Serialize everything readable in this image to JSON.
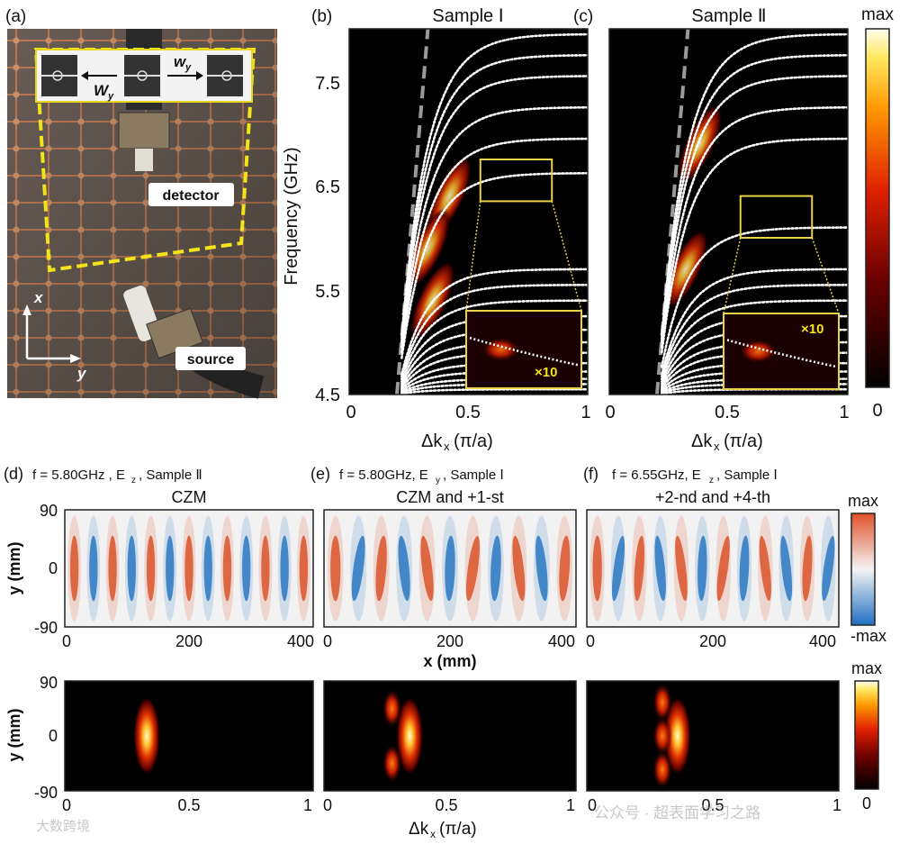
{
  "figure": {
    "panels": {
      "a": {
        "tag": "(a)",
        "labels": {
          "detector": "detector",
          "source": "source",
          "axis_x": "x",
          "axis_y": "y"
        },
        "inset": {
          "w_left": "W",
          "w_left_sub": "y",
          "w_right": "w",
          "w_right_sub": "y"
        }
      },
      "b": {
        "tag": "(b)",
        "title": "Sample Ⅰ",
        "inset_label": "×10"
      },
      "c": {
        "tag": "(c)",
        "title": "Sample Ⅱ",
        "inset_label": "×10"
      },
      "d": {
        "tag": "(d)",
        "caption": "f = 5.80GHz , E",
        "caption_sub": "z",
        "caption_tail": ", Sample Ⅱ",
        "title": "CZM"
      },
      "e": {
        "tag": "(e)",
        "caption": "f = 5.80GHz, E",
        "caption_sub": "y",
        "caption_tail": ", Sample Ⅰ",
        "title": "CZM and +1-st"
      },
      "f": {
        "tag": "(f)",
        "caption": "f = 6.55GHz, E",
        "caption_sub": "z",
        "caption_tail": ", Sample Ⅰ",
        "title": "+2-nd and +4-th"
      }
    },
    "colorbars": {
      "top": {
        "max": "max",
        "min": "0"
      },
      "field": {
        "max": "max",
        "min": "-max"
      },
      "bottom": {
        "max": "max",
        "min": "0"
      }
    },
    "axes": {
      "freq_label": "Frequency (GHz)",
      "freq_ticks": [
        "4.5",
        "5.5",
        "6.5",
        "7.5"
      ],
      "dk_label": "Δk",
      "dk_label_sub": "x",
      "dk_unit": "(π/a)",
      "dk_ticks": [
        "0",
        "0.5",
        "1"
      ],
      "y_label": "y (mm)",
      "y_ticks": [
        "90",
        "0",
        "-90"
      ],
      "x_label": "x (mm)",
      "x_ticks": [
        "0",
        "200",
        "400"
      ]
    },
    "watermarks": {
      "left": "大数跨境",
      "right": "公众号 · 超表面学习之路"
    }
  },
  "chart_data": [
    {
      "type": "heatmap",
      "title": "Sample Ⅰ",
      "xlabel": "Δkx (π/a)",
      "ylabel": "Frequency (GHz)",
      "xlim": [
        0,
        1
      ],
      "ylim": [
        4.5,
        8.0
      ],
      "light_line": [
        [
          0.2,
          4.5
        ],
        [
          0.33,
          8.0
        ]
      ],
      "bands": [
        4.55,
        4.6,
        4.65,
        4.72,
        4.8,
        4.9,
        5.0,
        5.12,
        5.25,
        5.4,
        5.55,
        5.7,
        6.62,
        6.95,
        7.25,
        7.55,
        7.75,
        7.95
      ],
      "bright_regions": [
        [
          0.35,
          5.4
        ],
        [
          0.42,
          6.4
        ],
        [
          0.33,
          5.9
        ]
      ],
      "zoom_box": {
        "x": [
          0.55,
          0.85
        ],
        "y": [
          6.35,
          6.75
        ]
      }
    },
    {
      "type": "heatmap",
      "title": "Sample Ⅱ",
      "xlabel": "Δkx (π/a)",
      "ylabel": "Frequency (GHz)",
      "xlim": [
        0,
        1
      ],
      "ylim": [
        4.5,
        8.0
      ],
      "light_line": [
        [
          0.2,
          4.5
        ],
        [
          0.33,
          8.0
        ]
      ],
      "bands": [
        4.55,
        4.6,
        4.65,
        4.72,
        4.8,
        4.9,
        5.0,
        5.12,
        5.25,
        5.4,
        5.55,
        5.7,
        6.1,
        6.95,
        7.25,
        7.55,
        7.75,
        7.95
      ],
      "bright_regions": [
        [
          0.32,
          5.7
        ],
        [
          0.38,
          6.9
        ]
      ],
      "zoom_box": {
        "x": [
          0.55,
          0.85
        ],
        "y": [
          6.0,
          6.4
        ]
      }
    },
    {
      "type": "heatmap",
      "title": "CZM",
      "xlabel": "x (mm)",
      "ylabel": "y (mm)",
      "xlim": [
        0,
        420
      ],
      "ylim": [
        -90,
        90
      ],
      "field_stripes": 13
    },
    {
      "type": "heatmap",
      "title": "CZM and +1-st",
      "xlabel": "x (mm)",
      "ylabel": "y (mm)",
      "xlim": [
        0,
        420
      ],
      "ylim": [
        -90,
        90
      ],
      "field_stripes": 11
    },
    {
      "type": "heatmap",
      "title": "+2-nd and +4-th",
      "xlabel": "x (mm)",
      "ylabel": "y (mm)",
      "xlim": [
        0,
        420
      ],
      "ylim": [
        -90,
        90
      ],
      "field_stripes": 12
    },
    {
      "type": "heatmap",
      "xlabel": "Δkx (π/a)",
      "ylabel": "y (mm)",
      "xlim": [
        0,
        1
      ],
      "ylim": [
        -90,
        90
      ],
      "spots": [
        [
          0.33,
          0
        ]
      ]
    },
    {
      "type": "heatmap",
      "xlabel": "Δkx (π/a)",
      "ylabel": "y (mm)",
      "xlim": [
        0,
        1
      ],
      "ylim": [
        -90,
        90
      ],
      "spots": [
        [
          0.34,
          0
        ],
        [
          0.27,
          45
        ],
        [
          0.27,
          -45
        ]
      ]
    },
    {
      "type": "heatmap",
      "xlabel": "Δkx (π/a)",
      "ylabel": "y (mm)",
      "xlim": [
        0,
        1
      ],
      "ylim": [
        -90,
        90
      ],
      "spots": [
        [
          0.36,
          0
        ],
        [
          0.3,
          55
        ],
        [
          0.3,
          0
        ],
        [
          0.3,
          -55
        ]
      ]
    }
  ]
}
